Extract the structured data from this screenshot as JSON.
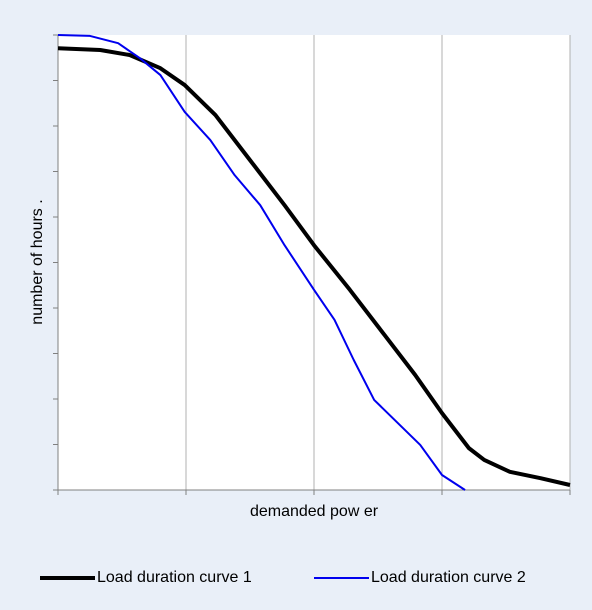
{
  "chart_data": {
    "type": "line",
    "x_label": "demanded pow er",
    "y_label": "number of hours .",
    "xlim": [
      0,
      4
    ],
    "xticks": [
      0,
      1,
      2,
      3,
      4
    ],
    "ylim": [
      0,
      10
    ],
    "yticks": [
      0,
      1,
      2,
      3,
      4,
      5,
      6,
      7,
      8,
      9,
      10
    ],
    "grid": "x",
    "legend": "bottom",
    "series": [
      {
        "name": "Load duration curve 1",
        "color": "#000000",
        "x": [
          0,
          0.33,
          0.56,
          0.8,
          0.99,
          1.23,
          1.5,
          1.77,
          2.0,
          2.28,
          2.55,
          2.79,
          3.0,
          3.21,
          3.33,
          3.53,
          3.77,
          4.0
        ],
        "values": [
          9.71,
          9.67,
          9.56,
          9.27,
          8.9,
          8.24,
          7.25,
          6.26,
          5.38,
          4.4,
          3.41,
          2.53,
          1.69,
          0.92,
          0.66,
          0.4,
          0.26,
          0.11
        ]
      },
      {
        "name": "Load duration curve 2",
        "color": "#0000ee",
        "x": [
          0,
          0.25,
          0.47,
          0.64,
          0.8,
          0.99,
          1.19,
          1.38,
          1.58,
          1.77,
          2.0,
          2.16,
          2.31,
          2.47,
          2.67,
          2.83,
          3.0,
          3.18
        ],
        "values": [
          10,
          9.98,
          9.82,
          9.49,
          9.12,
          8.31,
          7.69,
          6.92,
          6.26,
          5.38,
          4.4,
          3.74,
          2.86,
          1.98,
          1.43,
          0.99,
          0.33,
          0
        ]
      }
    ]
  }
}
